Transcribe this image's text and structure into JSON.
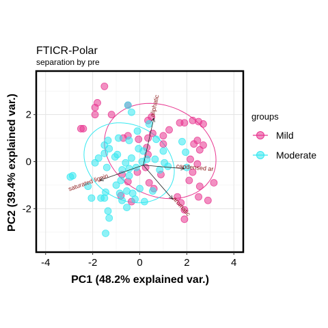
{
  "chart_data": {
    "type": "scatter",
    "title": "FTICR-Polar",
    "subtitle": "separation by pre",
    "xlabel": "PC1 (48.2% explained var.)",
    "ylabel": "PC2 (39.4% explained var.)",
    "xlim": [
      -4.4,
      4.4
    ],
    "ylim": [
      -3.85,
      3.85
    ],
    "xticks": [
      -4,
      -2,
      0,
      2,
      4
    ],
    "yticks": [
      -2,
      0,
      2
    ],
    "grid": true,
    "legend": {
      "title": "groups",
      "position": "right"
    },
    "series": [
      {
        "name": "Mild",
        "color": "#e8348f",
        "ellipse": {
          "center": [
            0.87,
            0.45
          ],
          "rx": 2.46,
          "ry": 1.92,
          "angle_deg": -25
        },
        "points": [
          [
            -1.5,
            3.2
          ],
          [
            -1.8,
            2.5
          ],
          [
            -1.9,
            2.3
          ],
          [
            -1.2,
            2.0
          ],
          [
            -1.9,
            2.0
          ],
          [
            -2.5,
            1.4
          ],
          [
            -2.4,
            1.4
          ],
          [
            -0.5,
            1.1
          ],
          [
            0.35,
            1.75
          ],
          [
            0.5,
            1.9
          ],
          [
            0.55,
            1.2
          ],
          [
            0.35,
            1.0
          ],
          [
            0.3,
            0.6
          ],
          [
            1.0,
            1.1
          ],
          [
            1.25,
            1.35
          ],
          [
            1.7,
            1.65
          ],
          [
            1.9,
            1.65
          ],
          [
            2.25,
            1.75
          ],
          [
            2.5,
            1.7
          ],
          [
            2.7,
            1.6
          ],
          [
            2.45,
            0.9
          ],
          [
            2.3,
            0.75
          ],
          [
            2.7,
            0.7
          ],
          [
            2.55,
            0.5
          ],
          [
            2.15,
            0.1
          ],
          [
            2.45,
            -0.1
          ],
          [
            2.25,
            -0.45
          ],
          [
            2.1,
            -0.8
          ],
          [
            2.55,
            -1.05
          ],
          [
            2.5,
            -1.5
          ],
          [
            2.9,
            -1.65
          ],
          [
            3.15,
            -0.9
          ],
          [
            1.0,
            0.75
          ],
          [
            1.6,
            -1.5
          ],
          [
            1.75,
            -1.75
          ],
          [
            1.9,
            -2.05
          ],
          [
            1.9,
            -2.45
          ],
          [
            -0.5,
            2.4
          ],
          [
            -0.7,
            1.0
          ],
          [
            -0.05,
            0.95
          ],
          [
            0.35,
            0.3
          ],
          [
            0.25,
            -0.25
          ],
          [
            -0.1,
            -0.45
          ],
          [
            0.9,
            -0.55
          ],
          [
            -0.75,
            -0.55
          ],
          [
            -0.5,
            -0.85
          ],
          [
            -0.8,
            -1.45
          ],
          [
            0.4,
            -0.9
          ],
          [
            0.6,
            -1.15
          ],
          [
            -0.35,
            -1.7
          ]
        ]
      },
      {
        "name": "Moderate",
        "color": "#33e8f0",
        "ellipse": {
          "center": [
            -0.45,
            -0.05
          ],
          "rx": 2.02,
          "ry": 1.58,
          "angle_deg": -30
        },
        "points": [
          [
            -0.5,
            2.4
          ],
          [
            -0.35,
            2.1
          ],
          [
            0.4,
            1.6
          ],
          [
            -0.1,
            1.3
          ],
          [
            -0.45,
            0.9
          ],
          [
            -1.35,
            0.9
          ],
          [
            -1.5,
            0.7
          ],
          [
            -1.3,
            0.55
          ],
          [
            -1.5,
            0.35
          ],
          [
            -1.75,
            0.15
          ],
          [
            -1.9,
            -0.05
          ],
          [
            -1.4,
            -0.25
          ],
          [
            -1.05,
            0.2
          ],
          [
            -0.95,
            0.3
          ],
          [
            -0.35,
            0.15
          ],
          [
            -0.05,
            0.55
          ],
          [
            0.15,
            0.45
          ],
          [
            0.3,
            0.1
          ],
          [
            -0.6,
            -0.05
          ],
          [
            -0.15,
            -0.25
          ],
          [
            0.1,
            0.0
          ],
          [
            0.65,
            0.1
          ],
          [
            1.05,
            -0.05
          ],
          [
            1.2,
            -0.2
          ],
          [
            0.85,
            -0.35
          ],
          [
            -0.45,
            -0.3
          ],
          [
            -0.75,
            -0.35
          ],
          [
            -0.45,
            -0.6
          ],
          [
            -0.8,
            -0.8
          ],
          [
            -1.0,
            -1.0
          ],
          [
            -0.55,
            -1.25
          ],
          [
            -0.85,
            -1.35
          ],
          [
            -1.45,
            -1.3
          ],
          [
            -1.5,
            -1.55
          ],
          [
            -1.65,
            -1.55
          ],
          [
            -2.2,
            -1.05
          ],
          [
            -2.05,
            -1.55
          ],
          [
            -0.75,
            -1.65
          ],
          [
            -0.3,
            -1.35
          ],
          [
            0.0,
            -1.15
          ],
          [
            0.55,
            -1.25
          ],
          [
            0.2,
            -1.7
          ],
          [
            -0.2,
            -1.6
          ],
          [
            -0.55,
            -1.95
          ],
          [
            -1.35,
            -2.1
          ],
          [
            -1.3,
            -2.4
          ],
          [
            -1.45,
            -3.05
          ],
          [
            -2.85,
            -0.6
          ],
          [
            -2.95,
            -0.65
          ],
          [
            1.8,
            0.85
          ],
          [
            1.95,
            0.4
          ],
          [
            2.0,
            -0.25
          ],
          [
            1.0,
            0.45
          ],
          [
            0.7,
            0.95
          ],
          [
            -0.9,
            1.0
          ]
        ]
      }
    ],
    "loadings": [
      {
        "label": "aliphatic",
        "x": 0.45,
        "y": 2.0
      },
      {
        "label": "condensed ar",
        "x": 1.75,
        "y": -0.15
      },
      {
        "label": "aromatic",
        "x": 1.25,
        "y": -1.45
      },
      {
        "label": "saturated lignin",
        "x": -1.85,
        "y": -0.65
      }
    ]
  }
}
